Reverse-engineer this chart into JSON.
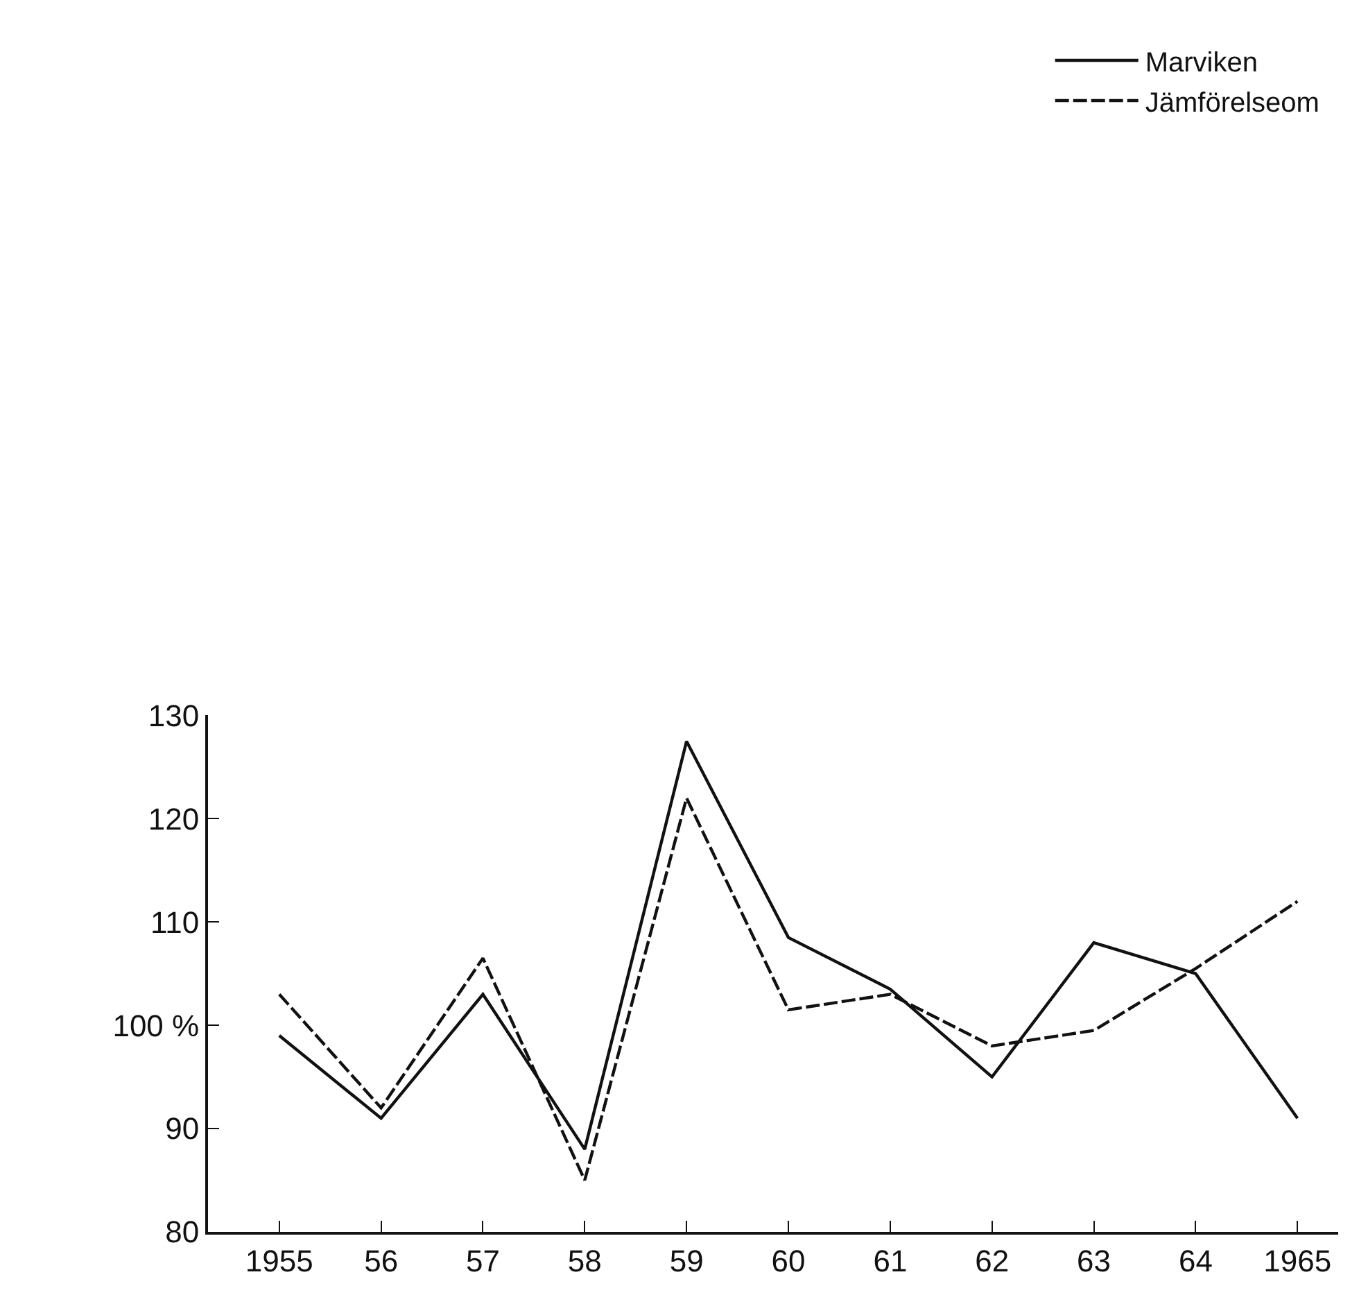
{
  "chart_data": {
    "type": "line",
    "x": [
      1955,
      1956,
      1957,
      1958,
      1959,
      1960,
      1961,
      1962,
      1963,
      1964,
      1965
    ],
    "series": [
      {
        "name": "Marviken",
        "color": "#111111",
        "line_style": "solid",
        "values": [
          99,
          91,
          103,
          88,
          127.5,
          108.5,
          103.5,
          95,
          108,
          105,
          91
        ]
      },
      {
        "name": "Jämförelseom",
        "color": "#111111",
        "line_style": "dashed",
        "values": [
          103,
          92,
          106.5,
          85,
          122,
          101.5,
          103,
          98,
          99.5,
          105.5,
          112
        ]
      }
    ],
    "xlim": [
      1954.3,
      1965.4
    ],
    "xticks": [
      {
        "value": 1955,
        "label": "1955"
      },
      {
        "value": 1956,
        "label": "56"
      },
      {
        "value": 1957,
        "label": "57"
      },
      {
        "value": 1958,
        "label": "58"
      },
      {
        "value": 1959,
        "label": "59"
      },
      {
        "value": 1960,
        "label": "60"
      },
      {
        "value": 1961,
        "label": "61"
      },
      {
        "value": 1962,
        "label": "62"
      },
      {
        "value": 1963,
        "label": "63"
      },
      {
        "value": 1964,
        "label": "64"
      },
      {
        "value": 1965,
        "label": "1965"
      }
    ],
    "ylim": [
      80,
      130
    ],
    "yticks": [
      80,
      90,
      {
        "value": 100,
        "label": "100 %"
      },
      110,
      120,
      130
    ],
    "legend": "top right",
    "marker": "none"
  }
}
